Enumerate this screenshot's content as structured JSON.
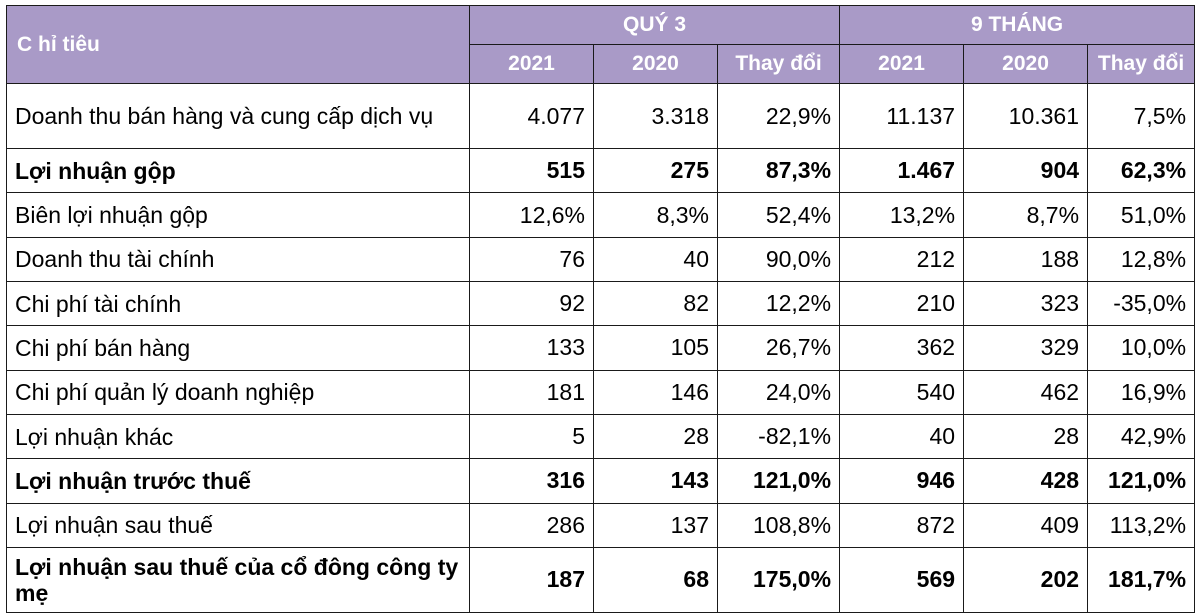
{
  "header": {
    "label": "C hỉ tiêu",
    "groups": [
      "QUÝ 3",
      "9 THÁNG"
    ],
    "subcols": [
      "2021",
      "2020",
      "Thay đổi",
      "2021",
      "2020",
      "Thay đổi"
    ]
  },
  "rows": [
    {
      "label": "Doanh thu bán hàng và cung cấp dịch vụ",
      "bold": false,
      "tall": true,
      "values": [
        "4.077",
        "3.318",
        "22,9%",
        "11.137",
        "10.361",
        "7,5%"
      ]
    },
    {
      "label": "Lợi nhuận gộp",
      "bold": true,
      "tall": false,
      "values": [
        "515",
        "275",
        "87,3%",
        "1.467",
        "904",
        "62,3%"
      ]
    },
    {
      "label": "Biên lợi nhuận gộp",
      "bold": false,
      "tall": false,
      "values": [
        "12,6%",
        "8,3%",
        "52,4%",
        "13,2%",
        "8,7%",
        "51,0%"
      ]
    },
    {
      "label": "Doanh thu tài chính",
      "bold": false,
      "tall": false,
      "values": [
        "76",
        "40",
        "90,0%",
        "212",
        "188",
        "12,8%"
      ]
    },
    {
      "label": "Chi phí tài chính",
      "bold": false,
      "tall": false,
      "values": [
        "92",
        "82",
        "12,2%",
        "210",
        "323",
        "-35,0%"
      ]
    },
    {
      "label": "Chi phí bán hàng",
      "bold": false,
      "tall": false,
      "values": [
        "133",
        "105",
        "26,7%",
        "362",
        "329",
        "10,0%"
      ]
    },
    {
      "label": "Chi phí quản lý doanh nghiệp",
      "bold": false,
      "tall": false,
      "values": [
        "181",
        "146",
        "24,0%",
        "540",
        "462",
        "16,9%"
      ]
    },
    {
      "label": "Lợi nhuận khác",
      "bold": false,
      "tall": false,
      "values": [
        "5",
        "28",
        "-82,1%",
        "40",
        "28",
        "42,9%"
      ]
    },
    {
      "label": "Lợi nhuận trước thuế",
      "bold": true,
      "tall": false,
      "values": [
        "316",
        "143",
        "121,0%",
        "946",
        "428",
        "121,0%"
      ]
    },
    {
      "label": "Lợi nhuận sau thuế",
      "bold": false,
      "tall": false,
      "values": [
        "286",
        "137",
        "108,8%",
        "872",
        "409",
        "113,2%"
      ]
    },
    {
      "label": "Lợi nhuận sau thuế của cổ đông công ty mẹ",
      "bold": true,
      "tall": true,
      "values": [
        "187",
        "68",
        "175,0%",
        "569",
        "202",
        "181,7%"
      ]
    }
  ]
}
